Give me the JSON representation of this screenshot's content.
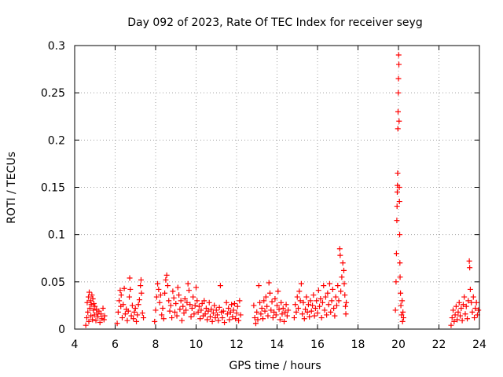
{
  "chart_data": {
    "type": "scatter",
    "title": "Day 092 of 2023, Rate Of TEC Index for receiver seyg",
    "xlabel": "GPS time / hours",
    "ylabel": "ROTI / TECUs",
    "xlim": [
      4,
      24
    ],
    "ylim": [
      0,
      0.3
    ],
    "x_ticks": [
      4,
      6,
      8,
      10,
      12,
      14,
      16,
      18,
      20,
      22,
      24
    ],
    "x_tick_labels": [
      "4",
      "6",
      "8",
      "10",
      "12",
      "14",
      "16",
      "18",
      "20",
      "22",
      "24"
    ],
    "y_ticks": [
      0,
      0.05,
      0.1,
      0.15,
      0.2,
      0.25,
      0.3
    ],
    "y_tick_labels": [
      "0",
      "0.05",
      "0.1",
      "0.15",
      "0.2",
      "0.25",
      "0.3"
    ],
    "grid": true,
    "marker": "+",
    "marker_color": "#ff0000",
    "series": [
      {
        "name": "ROTI",
        "points": [
          [
            4.55,
            0.004
          ],
          [
            4.6,
            0.012
          ],
          [
            4.62,
            0.028
          ],
          [
            4.65,
            0.018
          ],
          [
            4.68,
            0.034
          ],
          [
            4.7,
            0.008
          ],
          [
            4.72,
            0.039
          ],
          [
            4.75,
            0.022
          ],
          [
            4.78,
            0.03
          ],
          [
            4.8,
            0.014
          ],
          [
            4.82,
            0.026
          ],
          [
            4.85,
            0.036
          ],
          [
            4.88,
            0.01
          ],
          [
            4.9,
            0.032
          ],
          [
            4.92,
            0.02
          ],
          [
            4.95,
            0.027
          ],
          [
            4.98,
            0.015
          ],
          [
            5.0,
            0.024
          ],
          [
            5.05,
            0.009
          ],
          [
            5.08,
            0.021
          ],
          [
            5.1,
            0.017
          ],
          [
            5.15,
            0.013
          ],
          [
            5.2,
            0.019
          ],
          [
            5.25,
            0.007
          ],
          [
            5.3,
            0.016
          ],
          [
            5.35,
            0.011
          ],
          [
            5.4,
            0.022
          ],
          [
            5.45,
            0.01
          ],
          [
            5.48,
            0.014
          ],
          [
            6.1,
            0.006
          ],
          [
            6.15,
            0.018
          ],
          [
            6.2,
            0.03
          ],
          [
            6.25,
            0.041
          ],
          [
            6.28,
            0.024
          ],
          [
            6.3,
            0.036
          ],
          [
            6.35,
            0.012
          ],
          [
            6.4,
            0.026
          ],
          [
            6.45,
            0.043
          ],
          [
            6.5,
            0.016
          ],
          [
            6.55,
            0.021
          ],
          [
            6.6,
            0.009
          ],
          [
            6.65,
            0.019
          ],
          [
            6.7,
            0.034
          ],
          [
            6.72,
            0.054
          ],
          [
            6.75,
            0.042
          ],
          [
            6.8,
            0.014
          ],
          [
            6.85,
            0.025
          ],
          [
            6.9,
            0.011
          ],
          [
            6.95,
            0.018
          ],
          [
            7.0,
            0.022
          ],
          [
            7.05,
            0.008
          ],
          [
            7.1,
            0.015
          ],
          [
            7.15,
            0.026
          ],
          [
            7.2,
            0.031
          ],
          [
            7.25,
            0.046
          ],
          [
            7.28,
            0.052
          ],
          [
            7.3,
            0.038
          ],
          [
            7.35,
            0.017
          ],
          [
            7.4,
            0.012
          ],
          [
            7.95,
            0.008
          ],
          [
            8.0,
            0.02
          ],
          [
            8.05,
            0.034
          ],
          [
            8.1,
            0.048
          ],
          [
            8.15,
            0.042
          ],
          [
            8.2,
            0.028
          ],
          [
            8.25,
            0.036
          ],
          [
            8.3,
            0.015
          ],
          [
            8.35,
            0.022
          ],
          [
            8.4,
            0.011
          ],
          [
            8.45,
            0.038
          ],
          [
            8.5,
            0.052
          ],
          [
            8.55,
            0.057
          ],
          [
            8.6,
            0.046
          ],
          [
            8.65,
            0.03
          ],
          [
            8.7,
            0.019
          ],
          [
            8.75,
            0.025
          ],
          [
            8.8,
            0.012
          ],
          [
            8.85,
            0.04
          ],
          [
            8.9,
            0.033
          ],
          [
            8.95,
            0.018
          ],
          [
            9.0,
            0.027
          ],
          [
            9.05,
            0.014
          ],
          [
            9.1,
            0.044
          ],
          [
            9.15,
            0.036
          ],
          [
            9.2,
            0.021
          ],
          [
            9.25,
            0.03
          ],
          [
            9.3,
            0.009
          ],
          [
            9.35,
            0.024
          ],
          [
            9.4,
            0.017
          ],
          [
            9.45,
            0.032
          ],
          [
            9.5,
            0.02
          ],
          [
            9.55,
            0.028
          ],
          [
            9.6,
            0.048
          ],
          [
            9.65,
            0.041
          ],
          [
            9.7,
            0.026
          ],
          [
            9.75,
            0.013
          ],
          [
            9.8,
            0.022
          ],
          [
            9.85,
            0.034
          ],
          [
            9.9,
            0.016
          ],
          [
            9.95,
            0.025
          ],
          [
            10.0,
            0.044
          ],
          [
            10.05,
            0.03
          ],
          [
            10.1,
            0.018
          ],
          [
            10.15,
            0.024
          ],
          [
            10.2,
            0.011
          ],
          [
            10.25,
            0.02
          ],
          [
            10.3,
            0.027
          ],
          [
            10.35,
            0.014
          ],
          [
            10.4,
            0.03
          ],
          [
            10.45,
            0.016
          ],
          [
            10.5,
            0.022
          ],
          [
            10.55,
            0.01
          ],
          [
            10.6,
            0.019
          ],
          [
            10.65,
            0.028
          ],
          [
            10.7,
            0.013
          ],
          [
            10.75,
            0.021
          ],
          [
            10.8,
            0.008
          ],
          [
            10.85,
            0.017
          ],
          [
            10.9,
            0.025
          ],
          [
            10.95,
            0.012
          ],
          [
            11.0,
            0.02
          ],
          [
            11.05,
            0.015
          ],
          [
            11.1,
            0.009
          ],
          [
            11.15,
            0.023
          ],
          [
            11.2,
            0.046
          ],
          [
            11.25,
            0.018
          ],
          [
            11.3,
            0.012
          ],
          [
            11.35,
            0.019
          ],
          [
            11.4,
            0.007
          ],
          [
            11.5,
            0.028
          ],
          [
            11.55,
            0.016
          ],
          [
            11.6,
            0.022
          ],
          [
            11.65,
            0.01
          ],
          [
            11.7,
            0.018
          ],
          [
            11.75,
            0.026
          ],
          [
            11.8,
            0.013
          ],
          [
            11.85,
            0.02
          ],
          [
            11.9,
            0.027
          ],
          [
            11.95,
            0.011
          ],
          [
            12.0,
            0.017
          ],
          [
            12.05,
            0.024
          ],
          [
            12.1,
            0.009
          ],
          [
            12.15,
            0.03
          ],
          [
            12.2,
            0.015
          ],
          [
            12.85,
            0.025
          ],
          [
            12.9,
            0.012
          ],
          [
            12.95,
            0.006
          ],
          [
            13.0,
            0.018
          ],
          [
            13.05,
            0.01
          ],
          [
            13.1,
            0.046
          ],
          [
            13.15,
            0.028
          ],
          [
            13.2,
            0.016
          ],
          [
            13.25,
            0.022
          ],
          [
            13.3,
            0.011
          ],
          [
            13.35,
            0.03
          ],
          [
            13.4,
            0.019
          ],
          [
            13.45,
            0.034
          ],
          [
            13.5,
            0.024
          ],
          [
            13.55,
            0.014
          ],
          [
            13.6,
            0.049
          ],
          [
            13.65,
            0.038
          ],
          [
            13.7,
            0.02
          ],
          [
            13.75,
            0.029
          ],
          [
            13.8,
            0.012
          ],
          [
            13.85,
            0.018
          ],
          [
            13.9,
            0.032
          ],
          [
            13.95,
            0.015
          ],
          [
            14.0,
            0.025
          ],
          [
            14.05,
            0.04
          ],
          [
            14.1,
            0.021
          ],
          [
            14.15,
            0.01
          ],
          [
            14.2,
            0.028
          ],
          [
            14.25,
            0.016
          ],
          [
            14.3,
            0.022
          ],
          [
            14.35,
            0.008
          ],
          [
            14.4,
            0.018
          ],
          [
            14.45,
            0.026
          ],
          [
            14.5,
            0.014
          ],
          [
            14.55,
            0.02
          ],
          [
            14.85,
            0.012
          ],
          [
            14.9,
            0.026
          ],
          [
            14.95,
            0.018
          ],
          [
            15.0,
            0.034
          ],
          [
            15.05,
            0.022
          ],
          [
            15.1,
            0.04
          ],
          [
            15.15,
            0.03
          ],
          [
            15.2,
            0.048
          ],
          [
            15.25,
            0.016
          ],
          [
            15.3,
            0.028
          ],
          [
            15.35,
            0.011
          ],
          [
            15.4,
            0.021
          ],
          [
            15.45,
            0.034
          ],
          [
            15.5,
            0.018
          ],
          [
            15.55,
            0.026
          ],
          [
            15.6,
            0.013
          ],
          [
            15.65,
            0.03
          ],
          [
            15.7,
            0.019
          ],
          [
            15.75,
            0.025
          ],
          [
            15.8,
            0.036
          ],
          [
            15.85,
            0.014
          ],
          [
            15.9,
            0.022
          ],
          [
            15.95,
            0.03
          ],
          [
            16.0,
            0.017
          ],
          [
            16.05,
            0.041
          ],
          [
            16.1,
            0.024
          ],
          [
            16.15,
            0.032
          ],
          [
            16.2,
            0.012
          ],
          [
            16.25,
            0.028
          ],
          [
            16.3,
            0.046
          ],
          [
            16.35,
            0.02
          ],
          [
            16.4,
            0.034
          ],
          [
            16.45,
            0.015
          ],
          [
            16.5,
            0.038
          ],
          [
            16.55,
            0.026
          ],
          [
            16.6,
            0.048
          ],
          [
            16.65,
            0.018
          ],
          [
            16.7,
            0.03
          ],
          [
            16.75,
            0.042
          ],
          [
            16.8,
            0.022
          ],
          [
            16.85,
            0.014
          ],
          [
            16.9,
            0.034
          ],
          [
            16.95,
            0.025
          ],
          [
            17.0,
            0.046
          ],
          [
            17.05,
            0.03
          ],
          [
            17.1,
            0.085
          ],
          [
            17.12,
            0.078
          ],
          [
            17.15,
            0.04
          ],
          [
            17.2,
            0.055
          ],
          [
            17.25,
            0.07
          ],
          [
            17.3,
            0.062
          ],
          [
            17.32,
            0.048
          ],
          [
            17.35,
            0.036
          ],
          [
            17.38,
            0.024
          ],
          [
            17.4,
            0.016
          ],
          [
            17.42,
            0.028
          ],
          [
            19.85,
            0.02
          ],
          [
            19.88,
            0.05
          ],
          [
            19.9,
            0.08
          ],
          [
            19.92,
            0.115
          ],
          [
            19.93,
            0.13
          ],
          [
            19.94,
            0.145
          ],
          [
            19.95,
            0.152
          ],
          [
            19.96,
            0.165
          ],
          [
            19.97,
            0.212
          ],
          [
            19.98,
            0.23
          ],
          [
            19.99,
            0.25
          ],
          [
            20.0,
            0.265
          ],
          [
            20.01,
            0.29
          ],
          [
            20.02,
            0.28
          ],
          [
            20.03,
            0.22
          ],
          [
            20.04,
            0.15
          ],
          [
            20.05,
            0.135
          ],
          [
            20.06,
            0.1
          ],
          [
            20.07,
            0.07
          ],
          [
            20.08,
            0.055
          ],
          [
            20.1,
            0.038
          ],
          [
            20.12,
            0.025
          ],
          [
            20.15,
            0.015
          ],
          [
            20.18,
            0.03
          ],
          [
            20.2,
            0.008
          ],
          [
            20.22,
            0.018
          ],
          [
            20.25,
            0.012
          ],
          [
            22.6,
            0.004
          ],
          [
            22.65,
            0.012
          ],
          [
            22.7,
            0.02
          ],
          [
            22.75,
            0.008
          ],
          [
            22.8,
            0.015
          ],
          [
            22.85,
            0.024
          ],
          [
            22.9,
            0.01
          ],
          [
            22.95,
            0.018
          ],
          [
            23.0,
            0.028
          ],
          [
            23.05,
            0.014
          ],
          [
            23.1,
            0.022
          ],
          [
            23.15,
            0.009
          ],
          [
            23.2,
            0.026
          ],
          [
            23.25,
            0.034
          ],
          [
            23.3,
            0.016
          ],
          [
            23.35,
            0.024
          ],
          [
            23.4,
            0.011
          ],
          [
            23.45,
            0.03
          ],
          [
            23.5,
            0.072
          ],
          [
            23.52,
            0.065
          ],
          [
            23.55,
            0.042
          ],
          [
            23.6,
            0.028
          ],
          [
            23.65,
            0.018
          ],
          [
            23.7,
            0.034
          ],
          [
            23.75,
            0.012
          ],
          [
            23.8,
            0.022
          ],
          [
            23.85,
            0.028
          ],
          [
            23.9,
            0.015
          ],
          [
            23.95,
            0.02
          ]
        ]
      }
    ]
  }
}
